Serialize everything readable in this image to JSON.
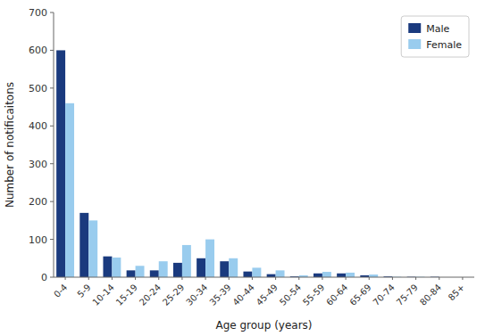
{
  "chart_data": {
    "type": "bar",
    "categories": [
      "0-4",
      "5-9",
      "10-14",
      "15-19",
      "20-24",
      "25-29",
      "30-34",
      "35-39",
      "40-44",
      "45-49",
      "50-54",
      "55-59",
      "60-64",
      "65-69",
      "70-74",
      "75-79",
      "80-84",
      "85+"
    ],
    "series": [
      {
        "name": "Male",
        "color": "#1a3a7e",
        "values": [
          600,
          170,
          55,
          18,
          18,
          38,
          50,
          42,
          15,
          8,
          2,
          10,
          10,
          5,
          2,
          1,
          1,
          0
        ]
      },
      {
        "name": "Female",
        "color": "#99ccee",
        "values": [
          460,
          150,
          52,
          30,
          42,
          85,
          100,
          50,
          25,
          18,
          5,
          14,
          12,
          7,
          1,
          1,
          0,
          0
        ]
      }
    ],
    "xlabel": "Age group (years)",
    "ylabel": "Number of notificaitons",
    "ylim": [
      0,
      700
    ],
    "yticks": [
      0,
      100,
      200,
      300,
      400,
      500,
      600,
      700
    ],
    "legend": "upper right",
    "grid": false
  }
}
